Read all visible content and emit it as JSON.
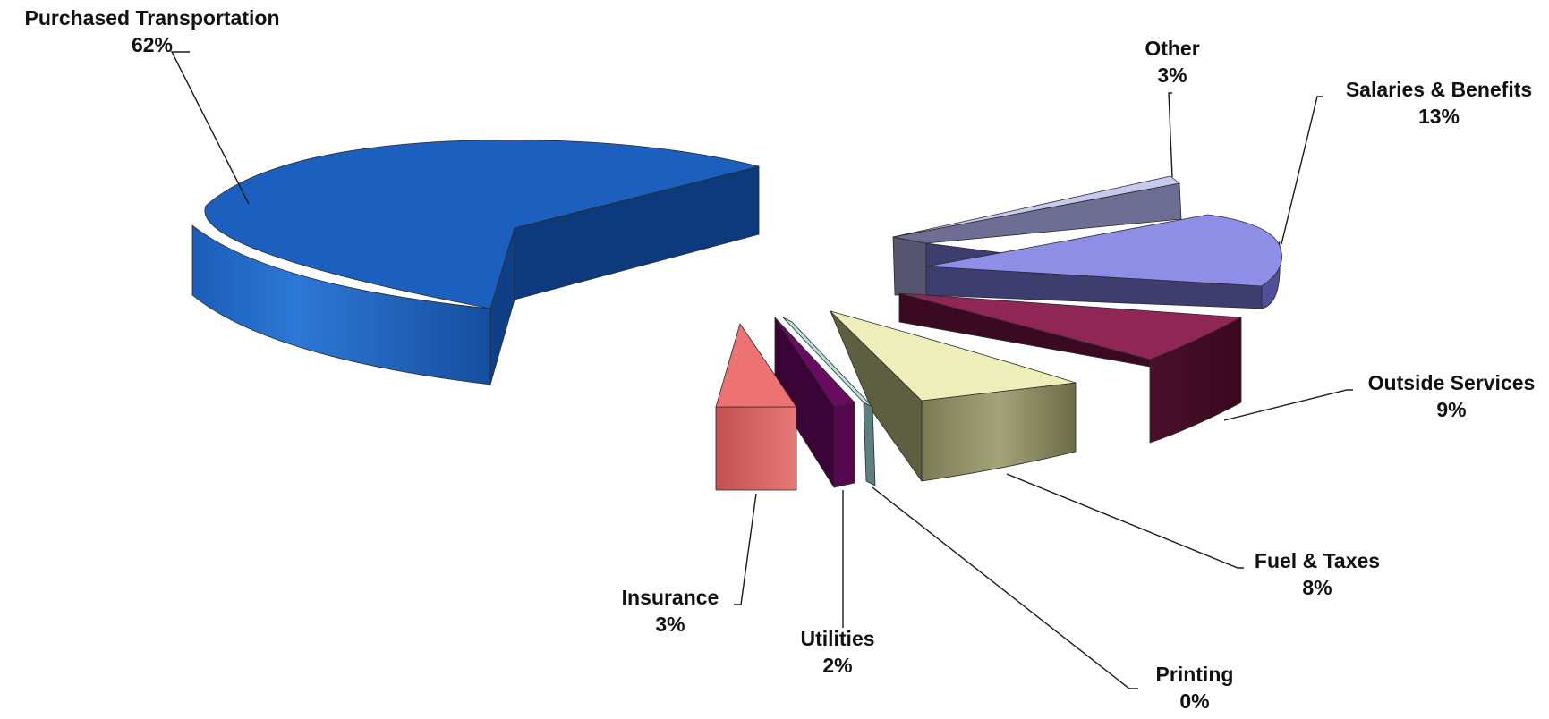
{
  "chart_data": {
    "type": "pie",
    "title": "",
    "style": "3d-exploded",
    "categories": [
      "Other",
      "Salaries & Benefits",
      "Outside Services",
      "Fuel & Taxes",
      "Printing",
      "Utilities",
      "Insurance",
      "Purchased Transportation"
    ],
    "values": [
      3,
      13,
      9,
      8,
      0,
      2,
      3,
      62
    ],
    "labels": [
      {
        "name": "Other",
        "pct": "3%"
      },
      {
        "name": "Salaries & Benefits",
        "pct": "13%"
      },
      {
        "name": "Outside Services",
        "pct": "9%"
      },
      {
        "name": "Fuel & Taxes",
        "pct": "8%"
      },
      {
        "name": "Printing",
        "pct": "0%"
      },
      {
        "name": "Utilities",
        "pct": "2%"
      },
      {
        "name": "Insurance",
        "pct": "3%"
      },
      {
        "name": "Purchased Transportation",
        "pct": "62%"
      }
    ],
    "colors": {
      "Other": "#c9c9ee",
      "Salaries & Benefits": "#8e8ee6",
      "Outside Services": "#8f2656",
      "Fuel & Taxes": "#eeeebb",
      "Printing": "#b8e0e0",
      "Utilities": "#6a0b62",
      "Insurance": "#ee7272",
      "Purchased Transportation": "#1b5fbf"
    },
    "legend": "none"
  }
}
